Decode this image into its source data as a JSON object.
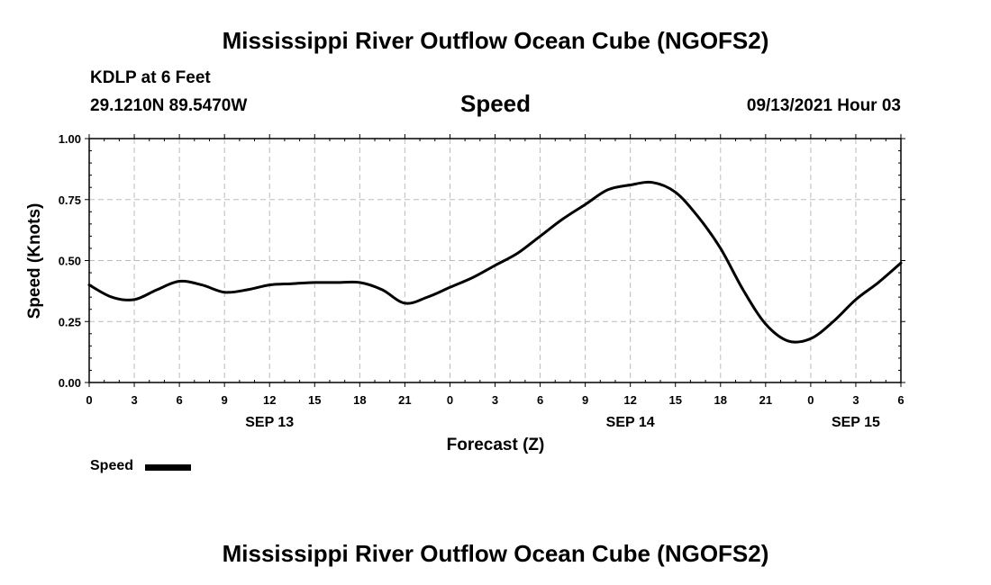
{
  "header": {
    "main_title": "Mississippi River Outflow Ocean Cube (NGOFS2)",
    "station": "KDLP at 6 Feet",
    "coords": "29.1210N  89.5470W",
    "date": "09/13/2021 Hour 03"
  },
  "footer": {
    "title": "Mississippi River Outflow Ocean Cube (NGOFS2)"
  },
  "chart_data": {
    "type": "line",
    "title": "Speed",
    "xlabel": "Forecast (Z)",
    "ylabel": "Speed (Knots)",
    "xlim": [
      0,
      54
    ],
    "ylim": [
      0,
      1
    ],
    "grid": true,
    "y_ticks": [
      0,
      0.25,
      0.5,
      0.75,
      1.0
    ],
    "y_tick_labels": [
      "0.00",
      "0.25",
      "0.50",
      "0.75",
      "1.00"
    ],
    "x_ticks": [
      0,
      3,
      6,
      9,
      12,
      15,
      18,
      21,
      24,
      27,
      30,
      33,
      36,
      39,
      42,
      45,
      48,
      51,
      54
    ],
    "x_tick_labels": [
      "0",
      "3",
      "6",
      "9",
      "12",
      "15",
      "18",
      "21",
      "0",
      "3",
      "6",
      "9",
      "12",
      "15",
      "18",
      "21",
      "0",
      "3",
      "6"
    ],
    "date_labels": [
      {
        "x": 12,
        "label": "SEP 13"
      },
      {
        "x": 36,
        "label": "SEP 14"
      },
      {
        "x": 51,
        "label": "SEP 15"
      }
    ],
    "legend": {
      "label": "Speed",
      "placement": "bottom-left"
    },
    "series": [
      {
        "name": "Speed",
        "color": "#000000",
        "x": [
          0,
          1.5,
          3,
          4.5,
          6,
          7.5,
          9,
          10.5,
          12,
          13.5,
          15,
          16.5,
          18,
          19.5,
          21,
          22.5,
          24,
          25.5,
          27,
          28.5,
          30,
          31.5,
          33,
          34.5,
          36,
          37.5,
          39,
          40.5,
          42,
          43.5,
          45,
          46.5,
          48,
          49.5,
          51,
          52.5,
          54
        ],
        "values": [
          0.4,
          0.35,
          0.34,
          0.38,
          0.415,
          0.4,
          0.37,
          0.38,
          0.4,
          0.405,
          0.41,
          0.41,
          0.41,
          0.38,
          0.325,
          0.35,
          0.39,
          0.43,
          0.48,
          0.53,
          0.6,
          0.67,
          0.73,
          0.79,
          0.81,
          0.82,
          0.78,
          0.68,
          0.55,
          0.38,
          0.24,
          0.17,
          0.18,
          0.25,
          0.34,
          0.41,
          0.49
        ]
      }
    ]
  }
}
